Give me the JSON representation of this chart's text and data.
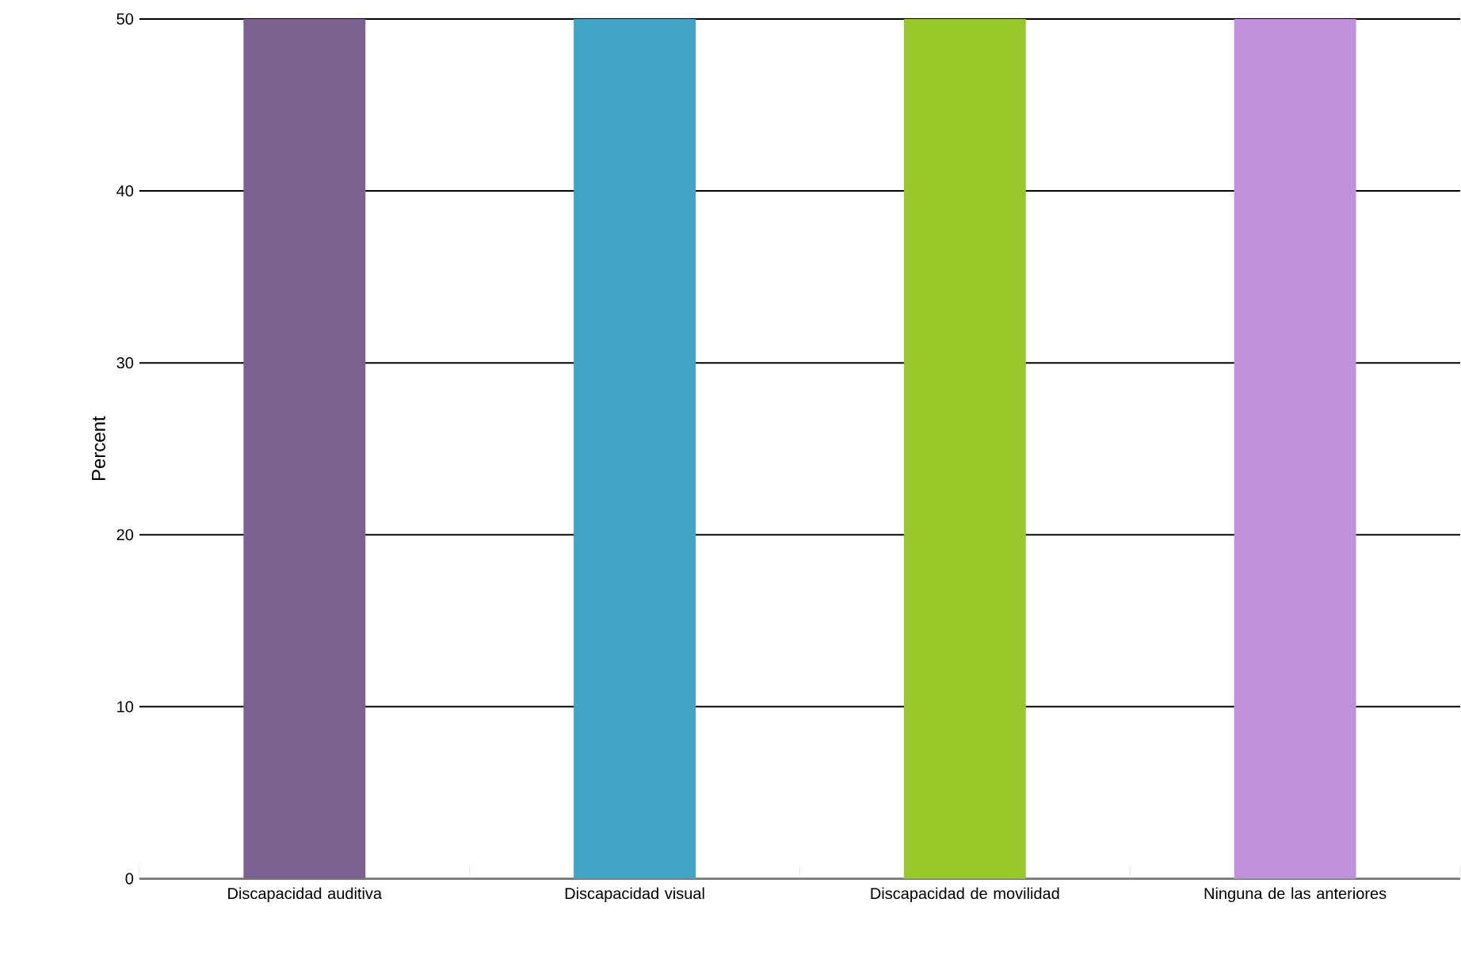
{
  "chart_data": {
    "type": "bar",
    "ylabel": "Percent",
    "categories": [
      "Discapacidad auditiva",
      "Discapacidad visual",
      "Discapacidad de movilidad",
      "Ninguna de las anteriores"
    ],
    "values": [
      50,
      50,
      50,
      50
    ],
    "colors": [
      "#7b6190",
      "#41a4c4",
      "#97c92a",
      "#bf92db"
    ],
    "ylim": [
      0,
      50
    ],
    "yticks": [
      0,
      10,
      20,
      30,
      40,
      50
    ],
    "grid": "y"
  }
}
